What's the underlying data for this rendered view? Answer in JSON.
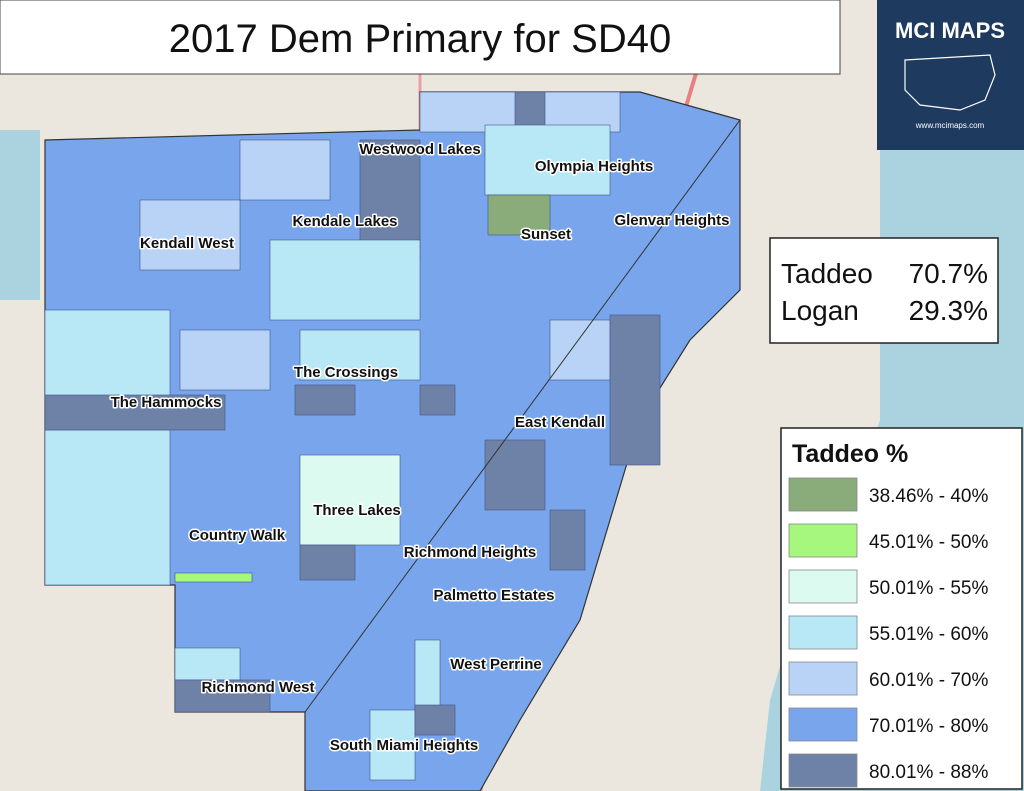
{
  "header": {
    "title": "2017 Dem Primary for SD40"
  },
  "logo": {
    "name": "MCI MAPS",
    "url": "www.mcimaps.com"
  },
  "results": [
    {
      "candidate": "Taddeo",
      "share": "70.7%"
    },
    {
      "candidate": "Logan",
      "share": "29.3%"
    }
  ],
  "legend": {
    "title": "Taddeo %",
    "items": [
      {
        "label": "38.46% - 40%",
        "color": "#8aab7a"
      },
      {
        "label": "45.01% - 50%",
        "color": "#a6f77e"
      },
      {
        "label": "50.01% - 55%",
        "color": "#dcfaf0"
      },
      {
        "label": "55.01% - 60%",
        "color": "#b8e8f5"
      },
      {
        "label": "60.01% - 70%",
        "color": "#b9d3f7"
      },
      {
        "label": "70.01% - 80%",
        "color": "#78a5ec"
      },
      {
        "label": "80.01% - 88%",
        "color": "#6e82a8"
      }
    ]
  },
  "places": [
    {
      "label": "Westwood Lakes"
    },
    {
      "label": "Olympia Heights"
    },
    {
      "label": "Kendale Lakes"
    },
    {
      "label": "Glenvar Heights"
    },
    {
      "label": "Kendall West"
    },
    {
      "label": "Sunset"
    },
    {
      "label": "The Crossings"
    },
    {
      "label": "The Hammocks"
    },
    {
      "label": "East Kendall"
    },
    {
      "label": "Three Lakes"
    },
    {
      "label": "Country Walk"
    },
    {
      "label": "Richmond Heights"
    },
    {
      "label": "Palmetto Estates"
    },
    {
      "label": "West Perrine"
    },
    {
      "label": "Richmond West"
    },
    {
      "label": "South Miami Heights"
    }
  ]
}
